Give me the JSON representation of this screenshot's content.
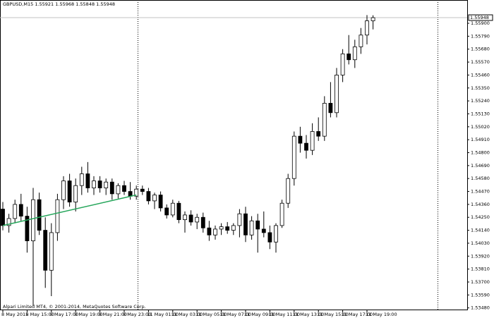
{
  "chart_data": {
    "type": "candlestick",
    "title": "GBPUSD,M15  1.55921 1.55968 1.55848 1.55948",
    "footer": "Alpari Limited MT4, © 2001-2014, MetaQuotes Software Corp.",
    "categories": [
      "8 May 2015",
      null,
      null,
      null,
      "8 May 15:00",
      null,
      null,
      null,
      "8 May 17:00",
      null,
      null,
      null,
      "8 May 19:00",
      null,
      null,
      null,
      "8 May 21:00",
      null,
      null,
      null,
      "8 May 23:00",
      null,
      null,
      null,
      "11 May 01:00",
      null,
      null,
      null,
      "11 May 03:00",
      null,
      null,
      null,
      "11 May 05:00",
      null,
      null,
      null,
      "11 May 07:00",
      null,
      null,
      null,
      "11 May 09:00",
      null,
      null,
      null,
      "11 May 11:00",
      null,
      null,
      null,
      "11 May 13:00",
      null,
      null,
      null,
      "11 May 15:00",
      null,
      null,
      null,
      "11 May 17:00",
      null,
      null,
      null,
      "11 May 19:00",
      null
    ],
    "open": [
      1.5432,
      1.5418,
      1.5424,
      1.5436,
      1.5426,
      1.5405,
      1.544,
      1.5414,
      1.538,
      1.5412,
      1.544,
      1.5456,
      1.5438,
      1.5452,
      1.5462,
      1.545,
      1.5456,
      1.545,
      1.5455,
      1.5445,
      1.5452,
      1.5447,
      1.5443,
      1.5449,
      1.5447,
      1.5439,
      1.5444,
      1.5433,
      1.5427,
      1.5437,
      1.5423,
      1.5427,
      1.5421,
      1.5425,
      1.5416,
      1.541,
      1.5415,
      1.5417,
      1.5414,
      1.5418,
      1.5428,
      1.541,
      1.5422,
      1.5415,
      1.5412,
      1.5404,
      1.5418,
      1.5437,
      1.5458,
      1.5494,
      1.5488,
      1.5482,
      1.5498,
      1.5494,
      1.5522,
      1.5514,
      1.5546,
      1.5564,
      1.5559,
      1.557,
      1.558,
      1.55921
    ],
    "high": [
      1.5438,
      1.5428,
      1.544,
      1.5445,
      1.5434,
      1.545,
      1.5446,
      1.5425,
      1.542,
      1.5445,
      1.546,
      1.5462,
      1.5458,
      1.5468,
      1.5472,
      1.546,
      1.546,
      1.5458,
      1.5458,
      1.5454,
      1.5456,
      1.5455,
      1.5452,
      1.5452,
      1.545,
      1.5446,
      1.5447,
      1.5436,
      1.544,
      1.5439,
      1.543,
      1.5431,
      1.5428,
      1.5429,
      1.5422,
      1.5418,
      1.542,
      1.5421,
      1.542,
      1.5432,
      1.5434,
      1.5426,
      1.5428,
      1.543,
      1.5418,
      1.542,
      1.544,
      1.5462,
      1.5498,
      1.5502,
      1.5495,
      1.5505,
      1.551,
      1.5528,
      1.554,
      1.5552,
      1.5568,
      1.558,
      1.5576,
      1.5586,
      1.5597,
      1.55968
    ],
    "low": [
      1.5414,
      1.5412,
      1.542,
      1.5422,
      1.5395,
      1.535,
      1.541,
      1.5365,
      1.5358,
      1.5405,
      1.5432,
      1.5434,
      1.543,
      1.5444,
      1.5446,
      1.5444,
      1.5446,
      1.5444,
      1.544,
      1.5441,
      1.5444,
      1.544,
      1.544,
      1.5444,
      1.5436,
      1.5432,
      1.543,
      1.5424,
      1.5425,
      1.542,
      1.5412,
      1.5418,
      1.5415,
      1.5412,
      1.5405,
      1.5406,
      1.541,
      1.5411,
      1.541,
      1.5408,
      1.5404,
      1.5406,
      1.5395,
      1.5408,
      1.5398,
      1.5395,
      1.5416,
      1.5433,
      1.5452,
      1.548,
      1.5475,
      1.5478,
      1.549,
      1.549,
      1.551,
      1.551,
      1.554,
      1.5555,
      1.5552,
      1.5564,
      1.5572,
      1.55848
    ],
    "close": [
      1.5418,
      1.5424,
      1.5436,
      1.5426,
      1.5405,
      1.544,
      1.5414,
      1.538,
      1.5412,
      1.544,
      1.5456,
      1.5438,
      1.5452,
      1.5462,
      1.545,
      1.5456,
      1.545,
      1.5455,
      1.5445,
      1.5452,
      1.5447,
      1.5443,
      1.5449,
      1.5447,
      1.5439,
      1.5444,
      1.5433,
      1.5427,
      1.5437,
      1.5423,
      1.5427,
      1.5421,
      1.5425,
      1.5416,
      1.541,
      1.5415,
      1.5417,
      1.5414,
      1.5418,
      1.5428,
      1.541,
      1.5422,
      1.5415,
      1.5412,
      1.5404,
      1.5418,
      1.5437,
      1.5458,
      1.5494,
      1.5488,
      1.5482,
      1.5498,
      1.5494,
      1.5522,
      1.5514,
      1.5546,
      1.5564,
      1.5559,
      1.557,
      1.558,
      1.55921,
      1.55948
    ],
    "bull_color": "#ffffff",
    "bear_color": "#000000",
    "outline_color": "#000000",
    "bid": {
      "value": 1.55948,
      "label": "1.55948"
    },
    "trendline": {
      "x": [
        0,
        22
      ],
      "values": [
        1.5418,
        1.5444
      ],
      "color": "#26a65b"
    },
    "ylim": [
      1.5346,
      1.56098
    ],
    "yticks": [
      {
        "value": 1.559,
        "label": "1.55900"
      },
      {
        "value": 1.5579,
        "label": "1.55790"
      },
      {
        "value": 1.5568,
        "label": "1.55680"
      },
      {
        "value": 1.5557,
        "label": "1.55570"
      },
      {
        "value": 1.5546,
        "label": "1.55460"
      },
      {
        "value": 1.5535,
        "label": "1.55350"
      },
      {
        "value": 1.5524,
        "label": "1.55240"
      },
      {
        "value": 1.5513,
        "label": "1.55130"
      },
      {
        "value": 1.5502,
        "label": "1.55020"
      },
      {
        "value": 1.5491,
        "label": "1.54910"
      },
      {
        "value": 1.548,
        "label": "1.54800"
      },
      {
        "value": 1.5469,
        "label": "1.54690"
      },
      {
        "value": 1.5458,
        "label": "1.54580"
      },
      {
        "value": 1.5447,
        "label": "1.54470"
      },
      {
        "value": 1.5436,
        "label": "1.54360"
      },
      {
        "value": 1.5425,
        "label": "1.54250"
      },
      {
        "value": 1.5414,
        "label": "1.54140"
      },
      {
        "value": 1.5403,
        "label": "1.54030"
      },
      {
        "value": 1.5392,
        "label": "1.53920"
      },
      {
        "value": 1.5381,
        "label": "1.53810"
      },
      {
        "value": 1.537,
        "label": "1.53700"
      },
      {
        "value": 1.5359,
        "label": "1.53590"
      },
      {
        "value": 1.5348,
        "label": "1.53480"
      }
    ]
  }
}
